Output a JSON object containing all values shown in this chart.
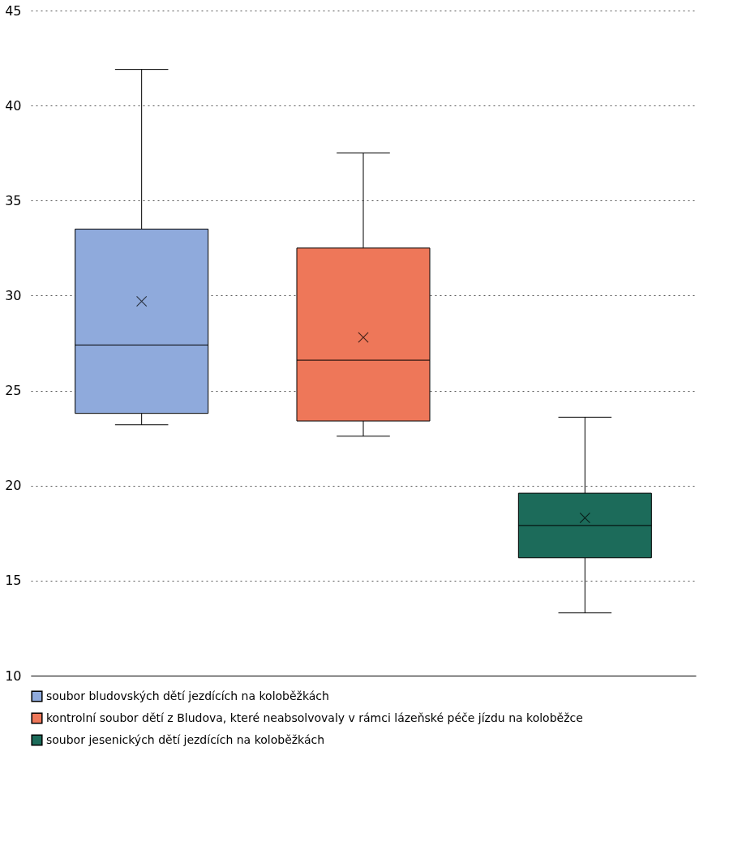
{
  "chart_data": {
    "type": "box",
    "categories": [
      null,
      null,
      null
    ],
    "series": [
      {
        "name": "soubor bludovských dětí jezdících na koloběžkách",
        "color": "#8faadc",
        "boxes": [
          {
            "low": 23.2,
            "q1": 23.8,
            "median": 27.4,
            "q3": 33.5,
            "high": 41.9,
            "mean": 29.7
          },
          null,
          null
        ]
      },
      {
        "name": "kontrolní soubor dětí z Bludova, které neabsolvovaly v rámci lázeňské péče jízdu na koloběžce",
        "color": "#ee7759",
        "boxes": [
          null,
          {
            "low": 22.6,
            "q1": 23.4,
            "median": 26.6,
            "q3": 32.5,
            "high": 37.5,
            "mean": 27.8
          },
          null
        ]
      },
      {
        "name": "soubor jesenických dětí jezdících na koloběžkách",
        "color": "#1c6b5a",
        "boxes": [
          null,
          null,
          {
            "low": 13.3,
            "q1": 16.2,
            "median": 17.9,
            "q3": 19.6,
            "high": 23.6,
            "mean": 18.3
          }
        ]
      }
    ],
    "ylim": [
      10,
      45
    ],
    "yticks": [
      10,
      15,
      20,
      25,
      30,
      35,
      40,
      45
    ],
    "grid": "y",
    "legend": "bottom",
    "tick_labels": "y"
  }
}
